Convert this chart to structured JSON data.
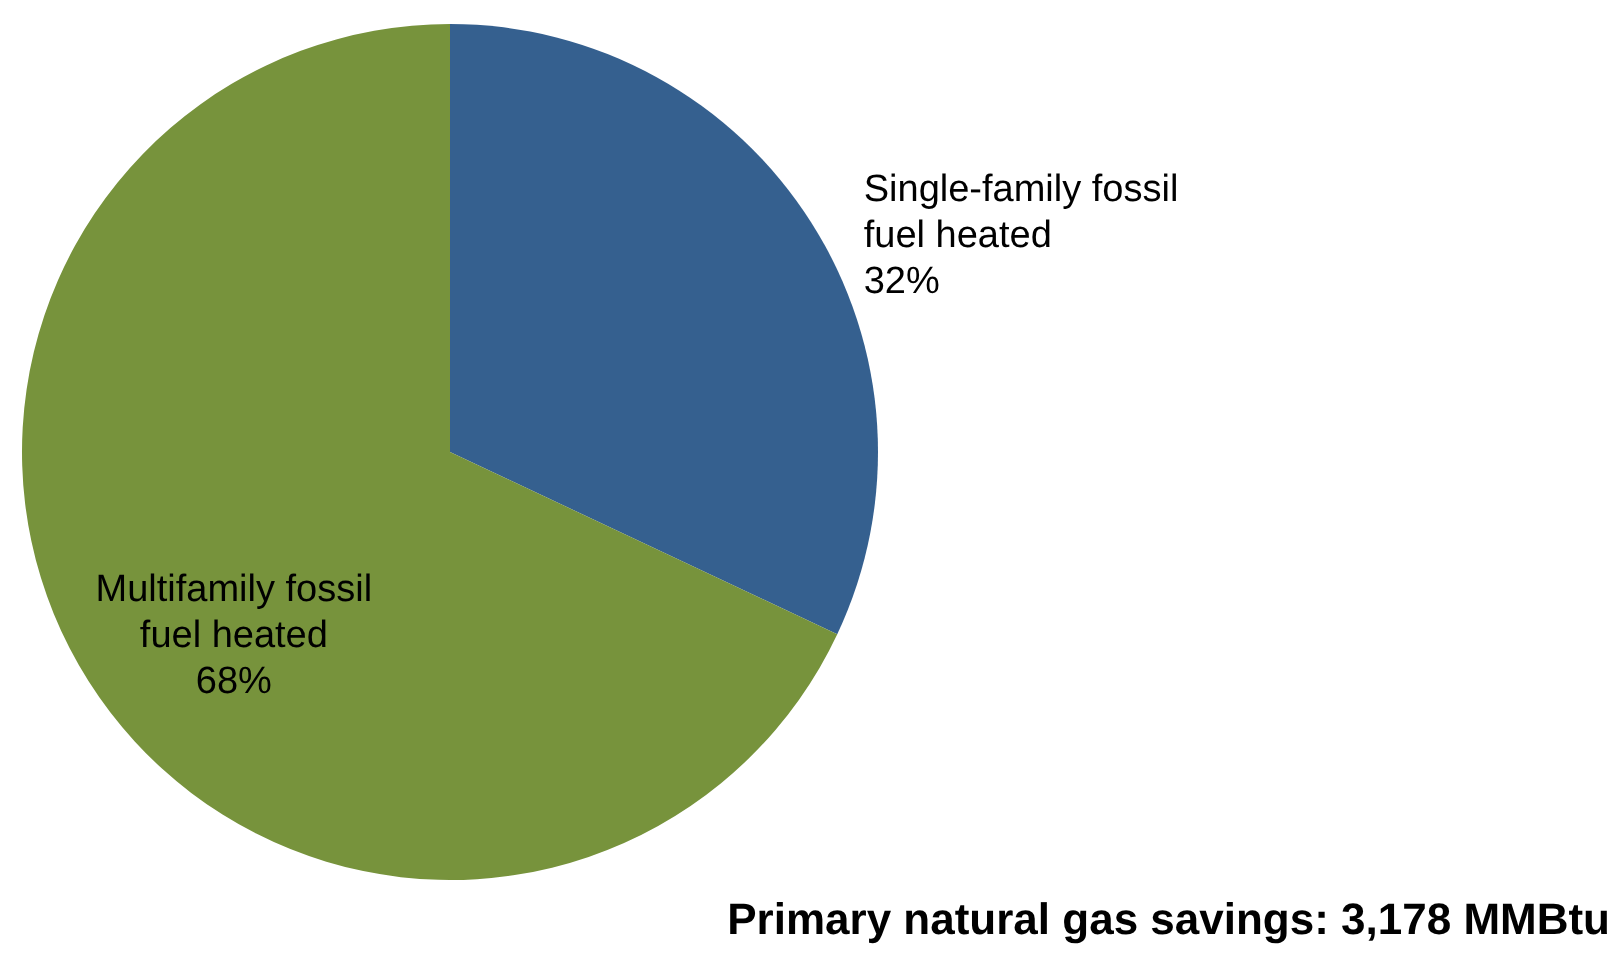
{
  "chart_data": {
    "type": "pie",
    "title": "Primary natural gas savings: 3,178 MMBtu",
    "categories": [
      "Single-family fossil fuel heated",
      "Multifamily fossil fuel heated"
    ],
    "values": [
      32,
      68
    ],
    "colors": [
      "#35608f",
      "#77933c"
    ],
    "value_labels": [
      "32%",
      "68%"
    ]
  }
}
